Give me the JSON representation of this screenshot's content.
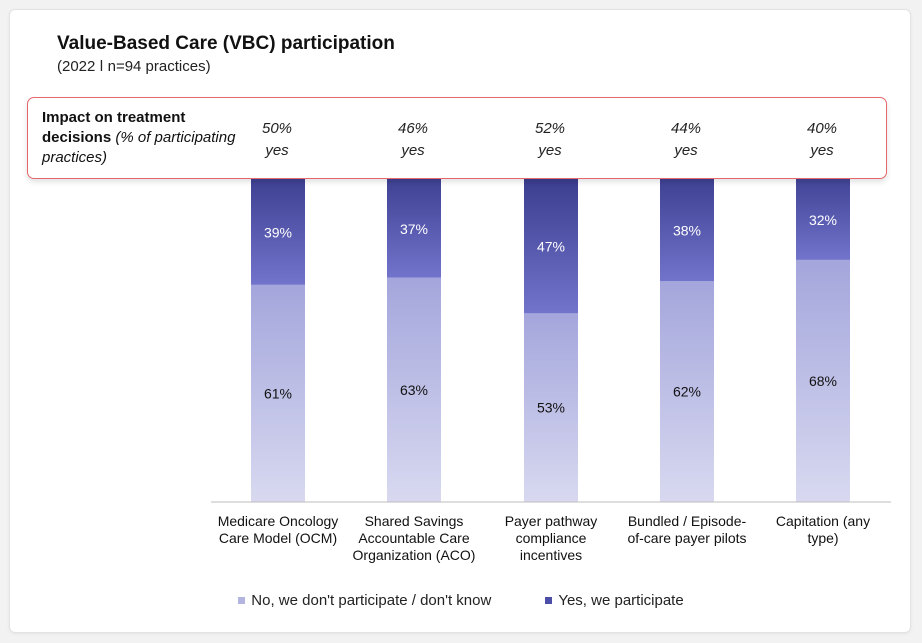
{
  "chart_data": {
    "type": "bar",
    "stacked": true,
    "title": "Value-Based Care (VBC) participation",
    "subtitle": "(2022 ǀ n=94 practices)",
    "categories": [
      [
        "Medicare Oncology",
        "Care Model (OCM)"
      ],
      [
        "Shared Savings",
        "Accountable Care",
        "Organization (ACO)"
      ],
      [
        "Payer pathway",
        "compliance",
        "incentives"
      ],
      [
        "Bundled / Episode-",
        "of-care payer pilots"
      ],
      [
        "Capitation (any",
        "type)"
      ]
    ],
    "series": [
      {
        "name": "No, we don't participate / don't know",
        "values": [
          61,
          63,
          53,
          62,
          68
        ],
        "color": "#b3b5e0"
      },
      {
        "name": "Yes, we participate",
        "values": [
          39,
          37,
          47,
          38,
          32
        ],
        "color": "#5a5cb9"
      }
    ],
    "value_labels": {
      "no": [
        "61%",
        "63%",
        "53%",
        "62%",
        "68%"
      ],
      "yes": [
        "39%",
        "37%",
        "47%",
        "38%",
        "32%"
      ]
    },
    "ylim": [
      0,
      100
    ],
    "legend_position": "bottom",
    "callout": {
      "label_bold": "Impact on treatment decisions",
      "label_italic": "(% of participating practices)",
      "percentages": [
        "50%",
        "46%",
        "52%",
        "44%",
        "40%"
      ],
      "suffix": "yes"
    }
  }
}
